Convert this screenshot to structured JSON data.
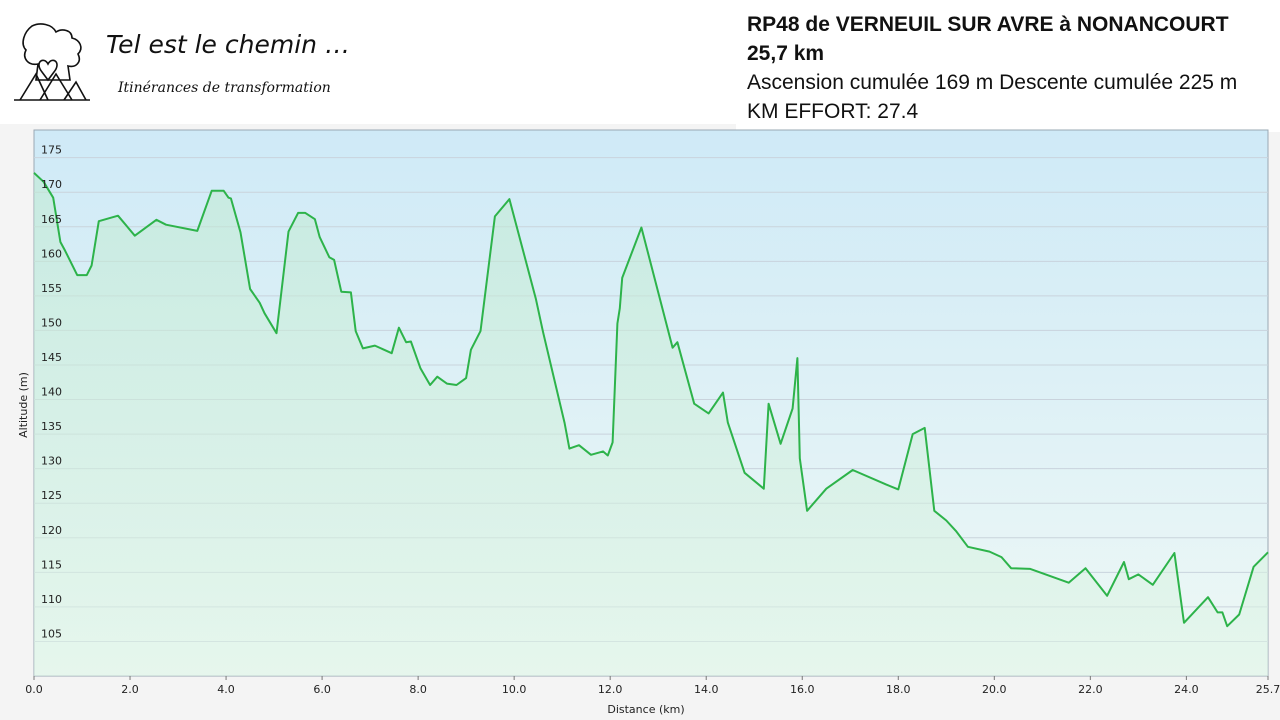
{
  "brand": {
    "name": "Tel est le chemin …",
    "tagline": "Itinérances de transformation"
  },
  "route": {
    "title": "RP48 de VERNEUIL SUR AVRE à NONANCOURT",
    "distance": "25,7 km",
    "elevation": "Ascension cumulée 169 m Descente cumulée 225 m",
    "effort": "KM EFFORT: 27,4"
  },
  "colors": {
    "line": "#2db34a",
    "grid": "#c9d3dc"
  },
  "chart_data": {
    "type": "area",
    "xlabel": "Distance  (km)",
    "ylabel": "Altitude (m)",
    "xlim": [
      0,
      25.7
    ],
    "ylim": [
      100,
      179
    ],
    "x_ticks": [
      0,
      2,
      4,
      6,
      8,
      10,
      12,
      14,
      16,
      18,
      20,
      22,
      24,
      25.7
    ],
    "x_tick_labels": [
      "0.0",
      "2.0",
      "4.0",
      "6.0",
      "8.0",
      "10.0",
      "12.0",
      "14.0",
      "16.0",
      "18.0",
      "20.0",
      "22.0",
      "24.0",
      "25.7"
    ],
    "y_ticks": [
      105,
      110,
      115,
      120,
      125,
      130,
      135,
      140,
      145,
      150,
      155,
      160,
      165,
      170,
      175
    ],
    "grid": true,
    "series": [
      {
        "x": [
          0,
          0.2,
          0.4,
          0.55,
          0.65,
          0.9,
          1.1,
          1.2,
          1.35,
          1.75,
          2.1,
          2.55,
          2.75,
          3.4,
          3.7,
          3.95,
          4.05,
          4.1,
          4.3,
          4.5,
          4.7,
          4.8,
          5.05,
          5.3,
          5.5,
          5.65,
          5.85,
          5.95,
          6.15,
          6.25,
          6.4,
          6.6,
          6.7,
          6.85,
          7.1,
          7.45,
          7.6,
          7.75,
          7.85,
          8.05,
          8.25,
          8.4,
          8.6,
          8.8,
          9.0,
          9.1,
          9.3,
          9.6,
          9.9,
          10.45,
          10.6,
          11.05,
          11.15,
          11.35,
          11.6,
          11.85,
          11.95,
          12.05,
          12.15,
          12.2,
          12.25,
          12.65,
          13.3,
          13.4,
          13.75,
          14.05,
          14.35,
          14.45,
          14.8,
          15.2,
          15.3,
          15.55,
          15.8,
          15.9,
          15.95,
          16.1,
          16.5,
          17.05,
          17.75,
          18.0,
          18.3,
          18.55,
          18.75,
          19.0,
          19.2,
          19.45,
          19.9,
          20.15,
          20.35,
          20.75,
          21.55,
          21.9,
          22.35,
          22.7,
          22.8,
          23.0,
          23.3,
          23.75,
          23.95,
          24.45,
          24.65,
          24.75,
          24.85,
          25.1,
          25.4,
          25.7
        ],
        "y": [
          172.8,
          171.5,
          169.2,
          162.8,
          161.5,
          158.0,
          158.0,
          159.4,
          165.8,
          166.6,
          163.7,
          166.0,
          165.3,
          164.4,
          170.2,
          170.2,
          169.2,
          169.1,
          164.2,
          156.0,
          154.0,
          152.5,
          149.6,
          164.3,
          167.0,
          167.0,
          166.1,
          163.5,
          160.6,
          160.2,
          155.6,
          155.5,
          149.9,
          147.4,
          147.8,
          146.7,
          150.4,
          148.3,
          148.4,
          144.5,
          142.1,
          143.3,
          142.3,
          142.1,
          143.1,
          147.2,
          149.9,
          166.5,
          169.0,
          154.6,
          149.8,
          136.6,
          132.9,
          133.4,
          132.0,
          132.5,
          131.9,
          133.8,
          151.0,
          153.2,
          157.6,
          164.9,
          147.5,
          148.3,
          139.4,
          138.0,
          141.0,
          136.7,
          129.4,
          127.1,
          139.4,
          133.6,
          138.7,
          146.0,
          131.5,
          123.9,
          127.1,
          129.8,
          127.7,
          127.0,
          135.0,
          135.9,
          123.9,
          122.5,
          121.0,
          118.7,
          118.0,
          117.2,
          115.6,
          115.5,
          113.5,
          115.6,
          111.6,
          116.5,
          114.0,
          114.7,
          113.2,
          117.8,
          107.7,
          111.4,
          109.2,
          109.2,
          107.2,
          108.9,
          115.8,
          117.9
        ]
      }
    ]
  }
}
